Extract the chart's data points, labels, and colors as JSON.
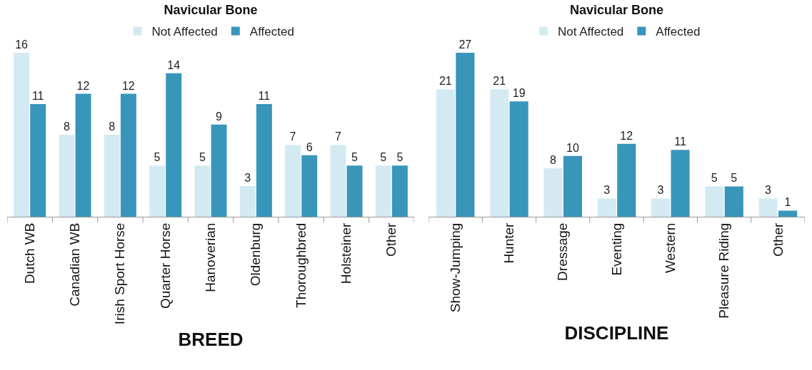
{
  "chart_data": [
    {
      "type": "bar",
      "title": "Navicular Bone",
      "xlabel": "BREED",
      "categories": [
        "Dutch WB",
        "Canadian WB",
        "Irish Sport Horse",
        "Quarter Horse",
        "Hanoverian",
        "Oldenburg",
        "Thoroughbred",
        "Holsteiner",
        "Other"
      ],
      "series": [
        {
          "name": "Not Affected",
          "color": "#d4eaf2",
          "values": [
            16,
            8,
            8,
            5,
            5,
            3,
            7,
            7,
            5
          ]
        },
        {
          "name": "Affected",
          "color": "#3896bb",
          "values": [
            11,
            12,
            12,
            14,
            9,
            11,
            6,
            5,
            5
          ]
        }
      ],
      "data_labels": true,
      "legend": "top"
    },
    {
      "type": "bar",
      "title": "Navicular Bone",
      "xlabel": "DISCIPLINE",
      "categories": [
        "Show-Jumping",
        "Hunter",
        "Dressage",
        "Eventing",
        "Western",
        "Pleasure Riding",
        "Other"
      ],
      "series": [
        {
          "name": "Not Affected",
          "color": "#d4eaf2",
          "values": [
            21,
            21,
            8,
            3,
            3,
            5,
            3
          ]
        },
        {
          "name": "Affected",
          "color": "#3896bb",
          "values": [
            27,
            19,
            10,
            12,
            11,
            5,
            1
          ]
        }
      ],
      "data_labels": true,
      "legend": "top"
    }
  ]
}
